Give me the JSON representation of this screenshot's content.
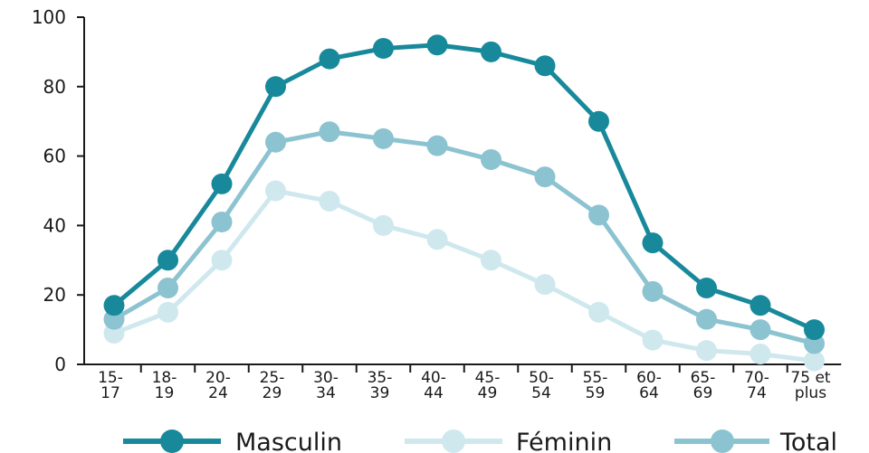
{
  "chart_data": {
    "type": "line",
    "categories": [
      [
        "15-",
        "17"
      ],
      [
        "18-",
        "19"
      ],
      [
        "20-",
        "24"
      ],
      [
        "25-",
        "29"
      ],
      [
        "30-",
        "34"
      ],
      [
        "35-",
        "39"
      ],
      [
        "40-",
        "44"
      ],
      [
        "45-",
        "49"
      ],
      [
        "50-",
        "54"
      ],
      [
        "55-",
        "59"
      ],
      [
        "60-",
        "64"
      ],
      [
        "65-",
        "69"
      ],
      [
        "70-",
        "74"
      ],
      [
        "75 et",
        "plus"
      ]
    ],
    "series": [
      {
        "name": "Masculin",
        "color": "#17899b",
        "values": [
          17,
          30,
          52,
          80,
          88,
          91,
          92,
          90,
          86,
          70,
          35,
          22,
          17,
          10
        ]
      },
      {
        "name": "Féminin",
        "color": "#cfe8ee",
        "values": [
          9,
          15,
          30,
          50,
          47,
          40,
          36,
          30,
          23,
          15,
          7,
          4,
          3,
          1
        ]
      },
      {
        "name": "Total",
        "color": "#8cc3d0",
        "values": [
          13,
          22,
          41,
          64,
          67,
          65,
          63,
          59,
          54,
          43,
          21,
          13,
          10,
          6
        ]
      }
    ],
    "ylim": [
      0,
      100
    ],
    "yticks": [
      "0",
      "20",
      "40",
      "60",
      "80",
      "100"
    ],
    "grid": false,
    "legend": "bottom"
  }
}
